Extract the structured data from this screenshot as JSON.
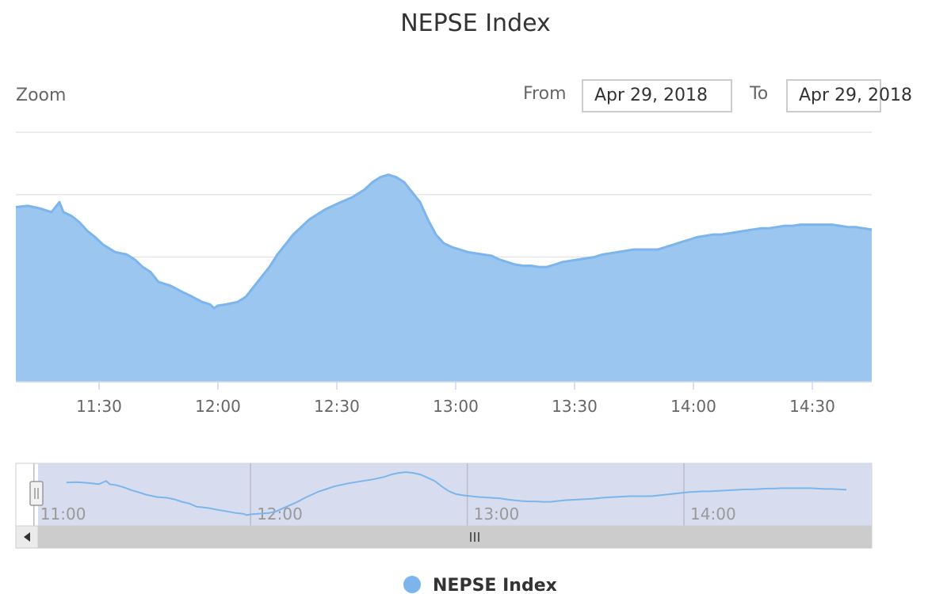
{
  "title": "NEPSE Index",
  "zoom_label": "Zoom",
  "range": {
    "from_label": "From",
    "from_value": "Apr 29, 2018",
    "to_label": "To",
    "to_value": "Apr 29, 2018"
  },
  "colors": {
    "series_line": "#7cb5ec",
    "series_fill": "#9ac6f0",
    "grid": "#e6e6e6",
    "navigator_mask": "#d0d7ec",
    "scrollbar": "#cccccc"
  },
  "chart_data": {
    "type": "area",
    "title": "NEPSE Index",
    "x_start": "11:09",
    "x_end": "14:45",
    "x_ticks": [
      "11:30",
      "12:00",
      "12:30",
      "13:00",
      "13:30",
      "14:00",
      "14:30"
    ],
    "navigator_ticks": [
      "11:00",
      "12:00",
      "13:00",
      "14:00"
    ],
    "y_ticks_visible": false,
    "grid": true,
    "series": [
      {
        "name": "NEPSE Index",
        "x": [
          "11:09",
          "11:12",
          "11:15",
          "11:18",
          "11:20",
          "11:21",
          "11:23",
          "11:25",
          "11:27",
          "11:29",
          "11:31",
          "11:34",
          "11:37",
          "11:39",
          "11:41",
          "11:43",
          "11:45",
          "11:48",
          "11:51",
          "11:53",
          "11:56",
          "11:58",
          "11:59",
          "12:00",
          "12:02",
          "12:05",
          "12:07",
          "12:09",
          "12:11",
          "12:13",
          "12:15",
          "12:17",
          "12:19",
          "12:21",
          "12:23",
          "12:25",
          "12:27",
          "12:29",
          "12:31",
          "12:34",
          "12:37",
          "12:39",
          "12:41",
          "12:43",
          "12:45",
          "12:47",
          "12:49",
          "12:51",
          "12:53",
          "12:55",
          "12:57",
          "12:59",
          "13:01",
          "13:03",
          "13:05",
          "13:07",
          "13:09",
          "13:11",
          "13:13",
          "13:15",
          "13:17",
          "13:19",
          "13:21",
          "13:23",
          "13:25",
          "13:27",
          "13:29",
          "13:31",
          "13:33",
          "13:35",
          "13:37",
          "13:39",
          "13:41",
          "13:43",
          "13:45",
          "13:47",
          "13:49",
          "13:51",
          "13:53",
          "13:55",
          "13:57",
          "13:59",
          "14:01",
          "14:03",
          "14:05",
          "14:07",
          "14:09",
          "14:11",
          "14:13",
          "14:15",
          "14:17",
          "14:19",
          "14:21",
          "14:23",
          "14:25",
          "14:27",
          "14:29",
          "14:31",
          "14:33",
          "14:35",
          "14:37",
          "14:39",
          "14:41",
          "14:43",
          "14:45"
        ],
        "y": [
          70.0,
          70.5,
          69.5,
          68.0,
          72.0,
          68.0,
          66.5,
          64.0,
          60.5,
          58.0,
          55.0,
          52.0,
          51.0,
          49.0,
          46.0,
          44.0,
          40.0,
          38.5,
          36.0,
          34.5,
          32.0,
          31.0,
          29.5,
          30.5,
          31.0,
          32.0,
          34.0,
          38.0,
          42.0,
          46.0,
          51.0,
          55.0,
          59.0,
          62.0,
          65.0,
          67.0,
          69.0,
          70.5,
          72.0,
          74.0,
          77.0,
          80.0,
          82.0,
          83.0,
          82.0,
          80.0,
          76.0,
          72.0,
          65.0,
          59.0,
          55.5,
          54.0,
          53.0,
          52.0,
          51.5,
          51.0,
          50.5,
          49.0,
          48.0,
          47.0,
          46.5,
          46.5,
          46.0,
          46.0,
          47.0,
          48.0,
          48.5,
          49.0,
          49.5,
          50.0,
          51.0,
          51.5,
          52.0,
          52.5,
          53.0,
          53.0,
          53.0,
          53.0,
          54.0,
          55.0,
          56.0,
          57.0,
          58.0,
          58.5,
          59.0,
          59.0,
          59.5,
          60.0,
          60.5,
          61.0,
          61.5,
          61.5,
          62.0,
          62.5,
          62.5,
          63.0,
          63.0,
          63.0,
          63.0,
          63.0,
          62.5,
          62.0,
          62.0,
          61.5,
          61.0
        ]
      }
    ]
  },
  "legend": {
    "items": [
      "NEPSE Index"
    ]
  }
}
